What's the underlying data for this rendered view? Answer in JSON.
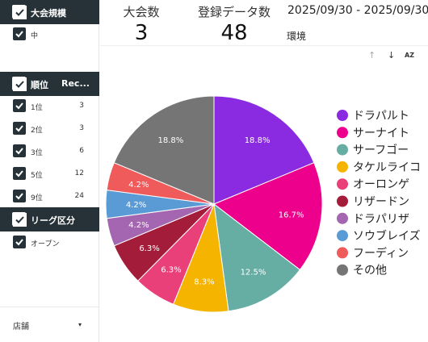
{
  "sidebar": {
    "sections": [
      {
        "title": "大会規模",
        "rec": "",
        "items": [
          {
            "label": "中",
            "count": ""
          }
        ]
      },
      {
        "title": "順位",
        "rec": "Rec...",
        "items": [
          {
            "label": "1位",
            "count": "3"
          },
          {
            "label": "2位",
            "count": "3"
          },
          {
            "label": "3位",
            "count": "6"
          },
          {
            "label": "5位",
            "count": "12"
          },
          {
            "label": "9位",
            "count": "24"
          }
        ]
      },
      {
        "title": "リーグ区分",
        "rec": "",
        "items": [
          {
            "label": "オープン",
            "count": ""
          }
        ]
      }
    ],
    "store_label": "店舗",
    "store_caret": "▾"
  },
  "kpis": [
    {
      "label": "大会数",
      "value": "3"
    },
    {
      "label": "登録データ数",
      "value": "48"
    }
  ],
  "date_range": "2025/09/30 - 2025/09/30",
  "env_label": "環境",
  "sort_icons": {
    "up": "↑",
    "down": "↓",
    "az": "AZ"
  },
  "chart_data": {
    "type": "pie",
    "title": "",
    "series": [
      {
        "name": "ドラパルト",
        "value": 18.8,
        "label": "18.8%",
        "color": "#8a2be2"
      },
      {
        "name": "サーナイト",
        "value": 16.7,
        "label": "16.7%",
        "color": "#ec008c"
      },
      {
        "name": "サーフゴー",
        "value": 12.5,
        "label": "12.5%",
        "color": "#66aea4"
      },
      {
        "name": "タケルライコ",
        "value": 8.3,
        "label": "8.3%",
        "color": "#f4b400"
      },
      {
        "name": "オーロンゲ",
        "value": 6.3,
        "label": "6.3%",
        "color": "#ea407a"
      },
      {
        "name": "リザードン",
        "value": 6.3,
        "label": "6.3%",
        "color": "#a31d3b"
      },
      {
        "name": "ドラパリザ",
        "value": 4.2,
        "label": "4.2%",
        "color": "#a466b0"
      },
      {
        "name": "ソウブレイズ",
        "value": 4.2,
        "label": "4.2%",
        "color": "#5b9bd5"
      },
      {
        "name": "フーディン",
        "value": 4.2,
        "label": "4.2%",
        "color": "#ef5a5a"
      },
      {
        "name": "その他",
        "value": 18.8,
        "label": "18.8%",
        "color": "#757575"
      }
    ],
    "legend_position": "right"
  }
}
